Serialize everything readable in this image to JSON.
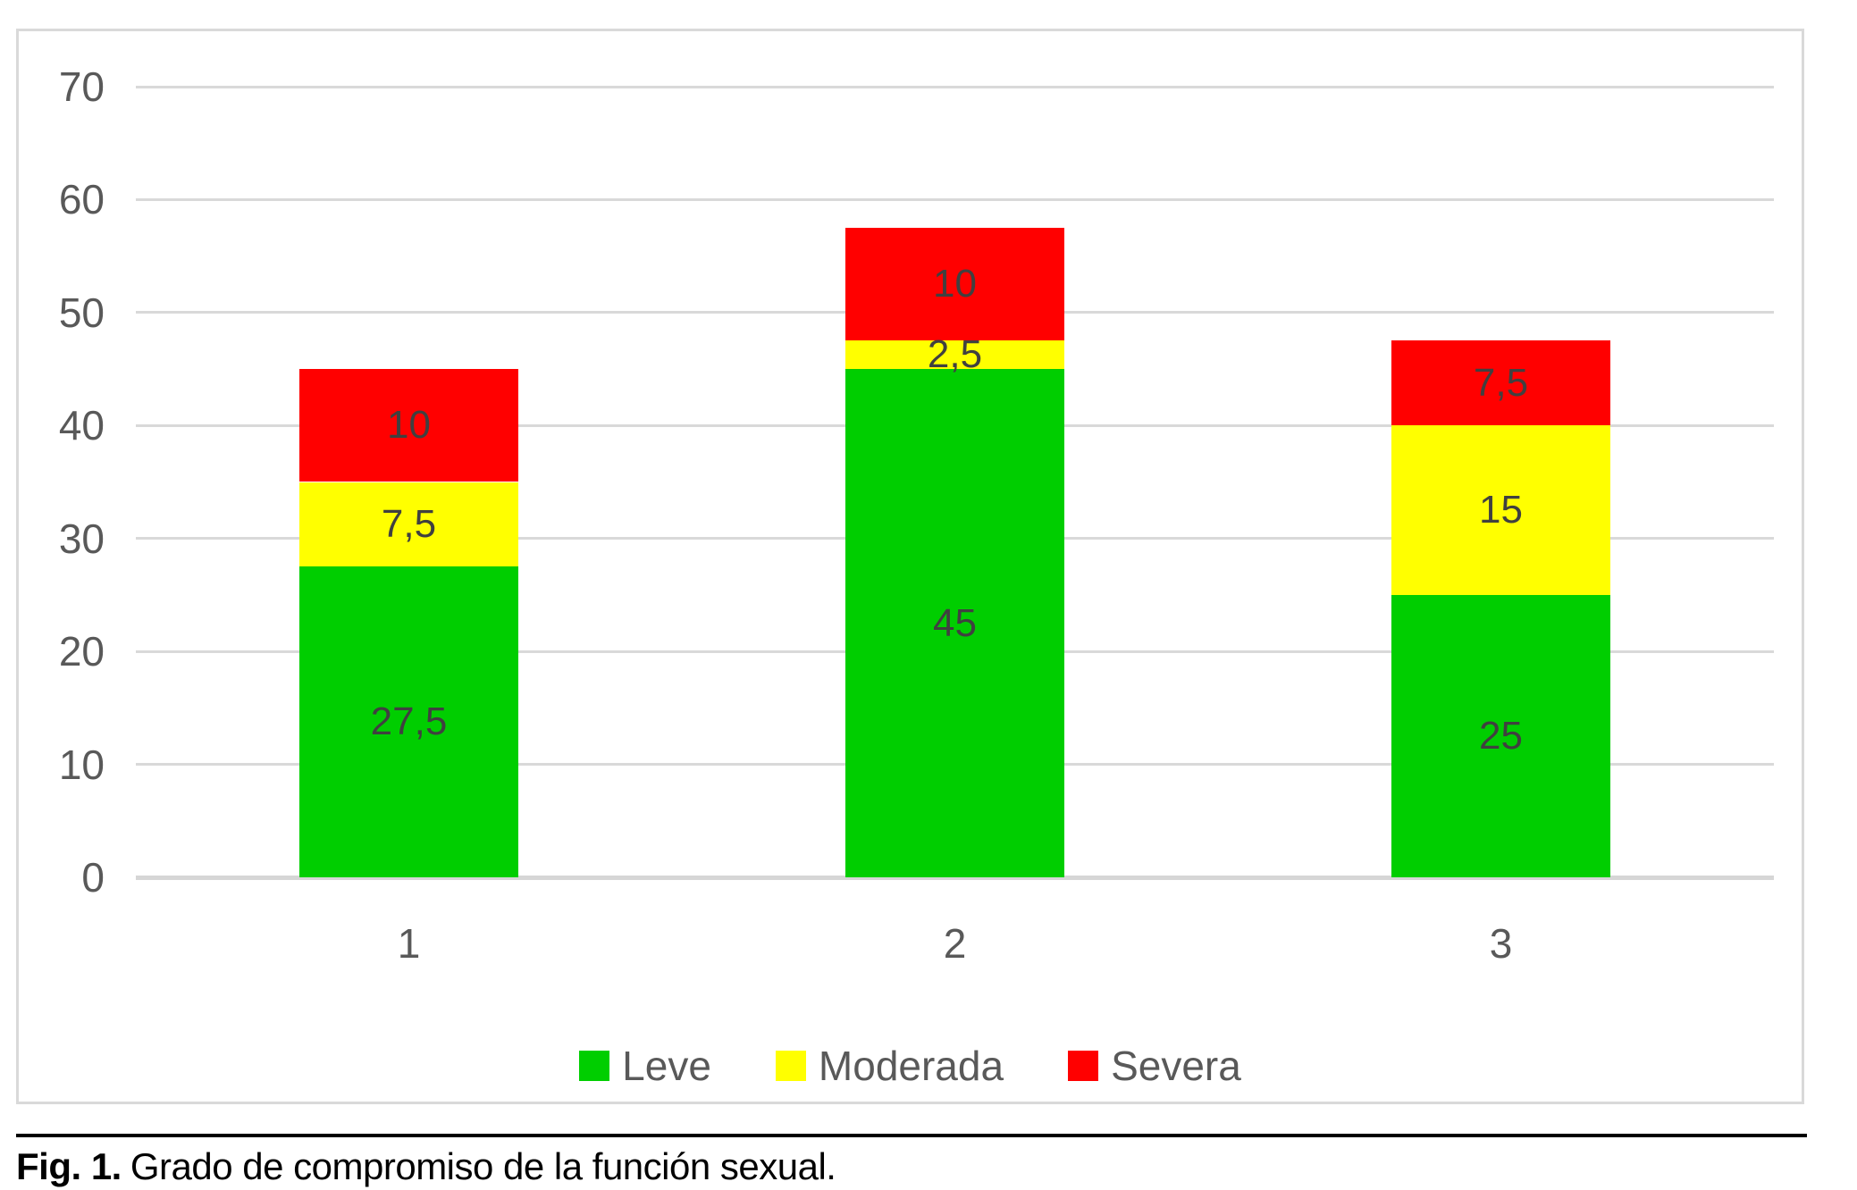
{
  "figure": {
    "caption_prefix": "Fig. 1.",
    "caption_text": "Grado de compromiso de la función sexual."
  },
  "colors": {
    "leve_green": "#00CE00",
    "moderada_yellow": "#FFFF00",
    "severa_red": "#FF0000",
    "gridline": "#d9d9d9",
    "axis_baseline": "#d6d6d6",
    "tick_text": "#595959",
    "data_label_text": "#404040",
    "frame_border": "#d9d9d9",
    "caption_rule": "#000000"
  },
  "chart_data": {
    "type": "bar",
    "stacked": true,
    "title": "",
    "xlabel": "",
    "ylabel": "",
    "categories": [
      "1",
      "2",
      "3"
    ],
    "series": [
      {
        "name": "Leve",
        "color": "#00CE00",
        "values": [
          27.5,
          45,
          25
        ],
        "labels": [
          "27,5",
          "45",
          "25"
        ]
      },
      {
        "name": "Moderada",
        "color": "#FFFF00",
        "values": [
          7.5,
          2.5,
          15
        ],
        "labels": [
          "7,5",
          "2,5",
          "15"
        ]
      },
      {
        "name": "Severa",
        "color": "#FF0000",
        "values": [
          10,
          10,
          7.5
        ],
        "labels": [
          "10",
          "10",
          "7,5"
        ]
      }
    ],
    "totals": [
      45,
      57.5,
      47.5
    ],
    "ylim": [
      0,
      70
    ],
    "yticks": [
      0,
      10,
      20,
      30,
      40,
      50,
      60,
      70
    ],
    "grid": true,
    "legend_position": "bottom",
    "legend_entries": [
      "Leve",
      "Moderada",
      "Severa"
    ]
  }
}
